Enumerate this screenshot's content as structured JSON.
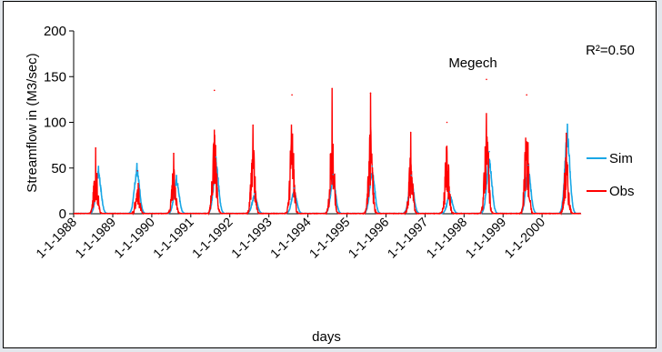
{
  "chart_data": {
    "type": "line",
    "title": "Megech",
    "annotation": "R²=0.50",
    "xlabel": "days",
    "ylabel": "Streamflow in (M3/sec)",
    "ylim": [
      0,
      200
    ],
    "yticks": [
      0,
      50,
      100,
      150,
      200
    ],
    "xlim": [
      "1988-01-01",
      "2000-12-31"
    ],
    "x_ticks": [
      "1-1-1988",
      "1-1-1989",
      "1-1-1990",
      "1-1-1991",
      "1-1-1992",
      "1-1-1993",
      "1-1-1994",
      "1-1-1995",
      "1-1-1996",
      "1-1-1997",
      "1-1-1998",
      "1-1-1999",
      "1-1-2000"
    ],
    "grid": false,
    "legend_position": "right",
    "series": [
      {
        "name": "Sim",
        "color": "#1aa7e6",
        "peaks": [
          {
            "date": "1988-08-20",
            "value": 52
          },
          {
            "date": "1989-08-15",
            "value": 55
          },
          {
            "date": "1990-08-20",
            "value": 42
          },
          {
            "date": "1991-08-25",
            "value": 62
          },
          {
            "date": "1992-08-20",
            "value": 22
          },
          {
            "date": "1993-08-25",
            "value": 28
          },
          {
            "date": "1994-08-25",
            "value": 43
          },
          {
            "date": "1995-08-25",
            "value": 52
          },
          {
            "date": "1996-08-25",
            "value": 42
          },
          {
            "date": "1997-08-20",
            "value": 24
          },
          {
            "date": "1998-08-25",
            "value": 68
          },
          {
            "date": "1999-08-25",
            "value": 53
          },
          {
            "date": "2000-08-25",
            "value": 98
          }
        ]
      },
      {
        "name": "Obs",
        "color": "#ff0000",
        "peaks": [
          {
            "date": "1988-07-25",
            "value": 72
          },
          {
            "date": "1989-08-20",
            "value": 47
          },
          {
            "date": "1990-07-25",
            "value": 66
          },
          {
            "date": "1991-08-10",
            "value": 135
          },
          {
            "date": "1992-08-05",
            "value": 97
          },
          {
            "date": "1993-08-05",
            "value": 130
          },
          {
            "date": "1994-08-15",
            "value": 137
          },
          {
            "date": "1995-08-10",
            "value": 132
          },
          {
            "date": "1996-08-20",
            "value": 89
          },
          {
            "date": "1997-07-25",
            "value": 100
          },
          {
            "date": "1998-07-30",
            "value": 147
          },
          {
            "date": "1999-08-10",
            "value": 130
          },
          {
            "date": "2000-08-15",
            "value": 88
          }
        ]
      }
    ]
  }
}
